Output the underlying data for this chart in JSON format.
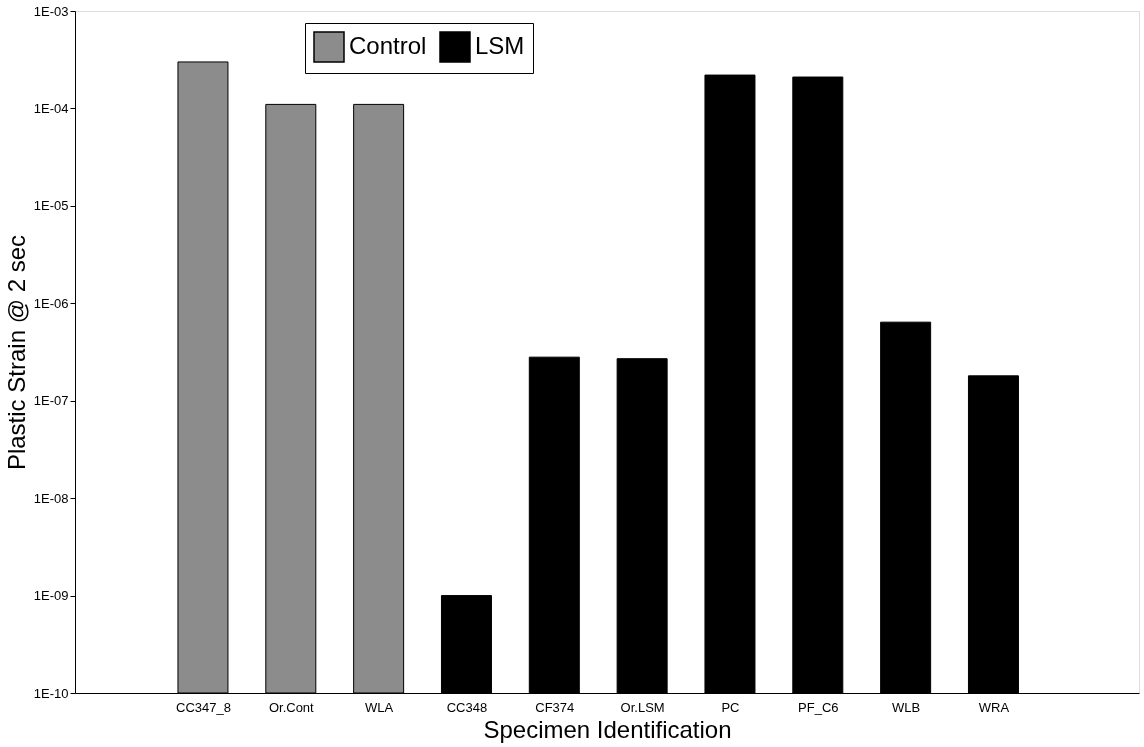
{
  "chart_data": {
    "type": "bar",
    "xlabel": "Specimen Identification",
    "ylabel": "Plastic Strain @ 2 sec",
    "categories": [
      "CC347_8",
      "Or.Cont",
      "WLA",
      "CC348",
      "CF374",
      "Or.LSM",
      "PC",
      "PF_C6",
      "WLB",
      "WRA"
    ],
    "series": [
      {
        "name": "Control",
        "color": "#8c8c8c",
        "values": [
          0.0003,
          0.00011,
          0.00011,
          null,
          null,
          null,
          null,
          null,
          null,
          null
        ]
      },
      {
        "name": "LSM",
        "color": "#000000",
        "values": [
          null,
          null,
          null,
          1e-09,
          2.8e-07,
          2.7e-07,
          0.00022,
          0.00021,
          6.4e-07,
          1.8e-07
        ]
      }
    ],
    "log": true,
    "ylim": [
      1e-10,
      0.001
    ],
    "yticks": [
      {
        "value": 1e-10,
        "label": "1E-10"
      },
      {
        "value": 1e-09,
        "label": "1E-09"
      },
      {
        "value": 1e-08,
        "label": "1E-08"
      },
      {
        "value": 1e-07,
        "label": "1E-07"
      },
      {
        "value": 1e-06,
        "label": "1E-06"
      },
      {
        "value": 1e-05,
        "label": "1E-05"
      },
      {
        "value": 0.0001,
        "label": "1E-04"
      },
      {
        "value": 0.001,
        "label": "1E-03"
      }
    ],
    "grid": false,
    "legend": "top"
  }
}
